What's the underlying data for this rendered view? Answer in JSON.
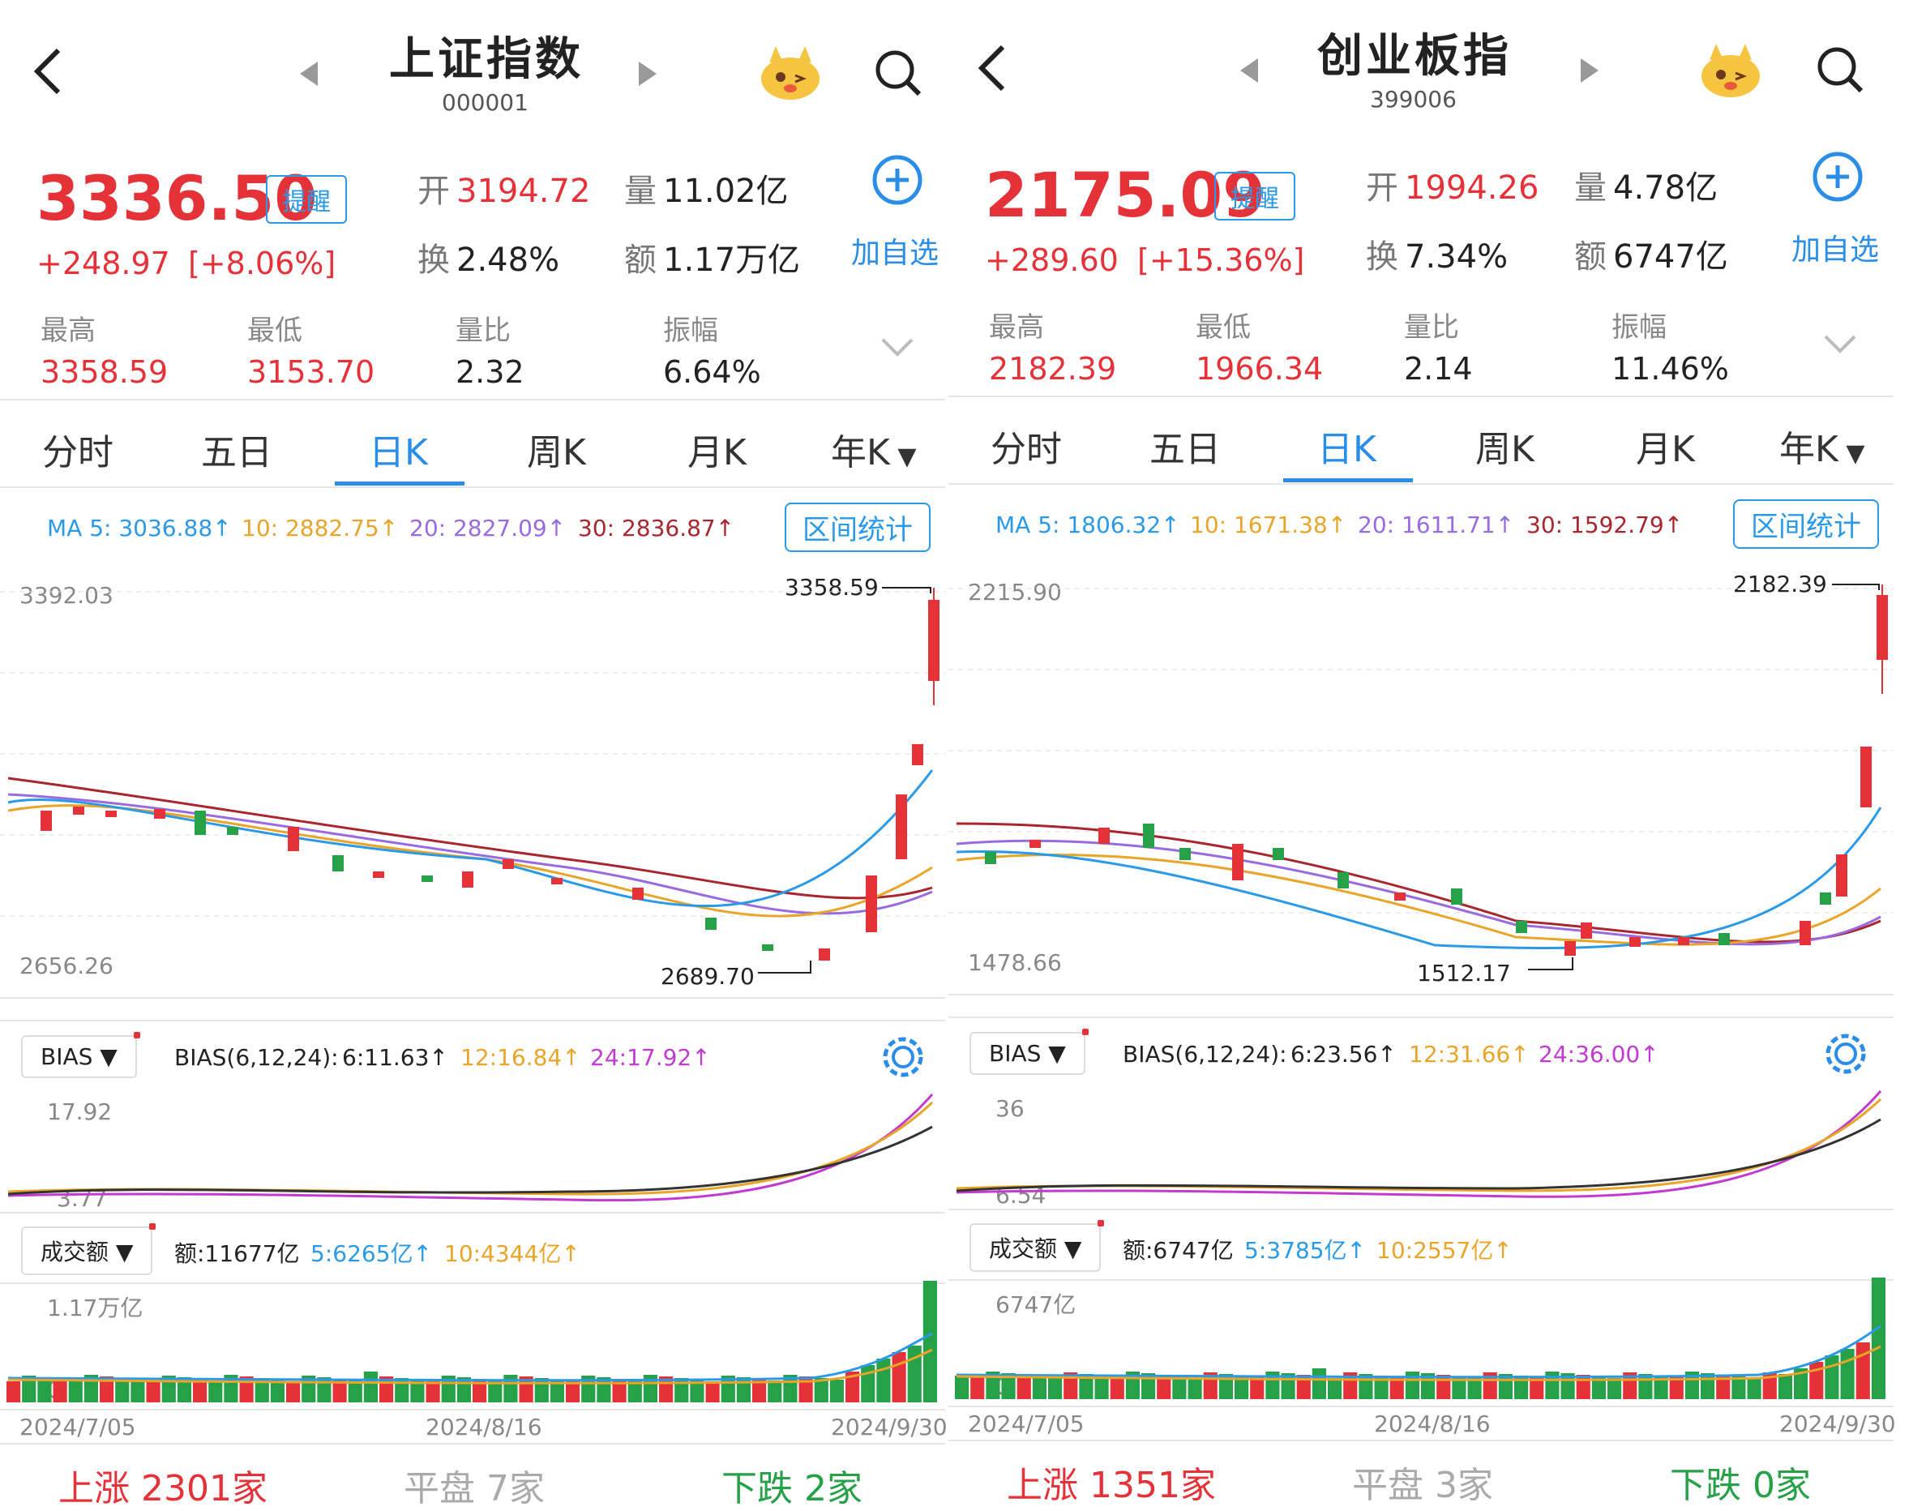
{
  "colors": {
    "up": "#e53238",
    "down": "#26a148",
    "accent": "#2a8ee8",
    "ma5": "#2a9ae8",
    "ma10": "#e8a52a",
    "ma20": "#9a6ae0",
    "ma30": "#a8262e"
  },
  "panels": [
    {
      "title": "上证指数",
      "code": "000001",
      "price": "3336.50",
      "remind_label": "提醒",
      "change": "+248.97",
      "change_pct": "[+8.06%]",
      "open_label": "开",
      "open": "3194.72",
      "volume_label": "量",
      "volume": "11.02亿",
      "turnover_label": "换",
      "turnover": "2.48%",
      "amount_label": "额",
      "amount": "1.17万亿",
      "add_label": "加自选",
      "stats": [
        {
          "label": "最高",
          "value": "3358.59"
        },
        {
          "label": "最低",
          "value": "3153.70"
        },
        {
          "label": "量比",
          "value": "2.32"
        },
        {
          "label": "振幅",
          "value": "6.64%"
        }
      ],
      "tabs": [
        "分时",
        "五日",
        "日K",
        "周K",
        "月K",
        "年K"
      ],
      "active_tab": 2,
      "ma": {
        "ma5": "MA 5: 3036.88↑",
        "ma10": "10: 2882.75↑",
        "ma20": "20: 2827.09↑",
        "ma30": "30: 2836.87↑"
      },
      "range_btn": "区间统计",
      "chart": {
        "top": "3392.03",
        "bottom": "2656.26",
        "high_note": "3358.59",
        "low_note": "2689.70"
      },
      "bias": {
        "select": "BIAS",
        "title": "BIAS(6,12,24):",
        "b6": "6:11.63↑",
        "b12": "12:16.84↑",
        "b24": "24:17.92↑",
        "top": "17.92",
        "bottom": "3.77"
      },
      "vol": {
        "select": "成交额",
        "amount": "额:11677亿",
        "ma5": "5:6265亿↑",
        "ma10": "10:4344亿↑",
        "top": "1.17万亿",
        "bottom": "0"
      },
      "dates": [
        "2024/7/05",
        "2024/8/16",
        "2024/9/30"
      ],
      "breadth": {
        "up": "上涨  2301家",
        "flat": "平盘  7家",
        "down": "下跌  2家"
      }
    },
    {
      "title": "创业板指",
      "code": "399006",
      "price": "2175.09",
      "remind_label": "提醒",
      "change": "+289.60",
      "change_pct": "[+15.36%]",
      "open_label": "开",
      "open": "1994.26",
      "volume_label": "量",
      "volume": "4.78亿",
      "turnover_label": "换",
      "turnover": "7.34%",
      "amount_label": "额",
      "amount": "6747亿",
      "add_label": "加自选",
      "stats": [
        {
          "label": "最高",
          "value": "2182.39"
        },
        {
          "label": "最低",
          "value": "1966.34"
        },
        {
          "label": "量比",
          "value": "2.14"
        },
        {
          "label": "振幅",
          "value": "11.46%"
        }
      ],
      "tabs": [
        "分时",
        "五日",
        "日K",
        "周K",
        "月K",
        "年K"
      ],
      "active_tab": 2,
      "ma": {
        "ma5": "MA 5: 1806.32↑",
        "ma10": "10: 1671.38↑",
        "ma20": "20: 1611.71↑",
        "ma30": "30: 1592.79↑"
      },
      "range_btn": "区间统计",
      "chart": {
        "top": "2215.90",
        "bottom": "1478.66",
        "high_note": "2182.39",
        "low_note": "1512.17"
      },
      "bias": {
        "select": "BIAS",
        "title": "BIAS(6,12,24):",
        "b6": "6:23.56↑",
        "b12": "12:31.66↑",
        "b24": "24:36.00↑",
        "top": "36",
        "bottom": "6.54"
      },
      "vol": {
        "select": "成交额",
        "amount": "额:6747亿",
        "ma5": "5:3785亿↑",
        "ma10": "10:2557亿↑",
        "top": "6747亿",
        "bottom": "0"
      },
      "dates": [
        "2024/7/05",
        "2024/8/16",
        "2024/9/30"
      ],
      "breadth": {
        "up": "上涨  1351家",
        "flat": "平盘  3家",
        "down": "下跌  0家"
      }
    }
  ]
}
